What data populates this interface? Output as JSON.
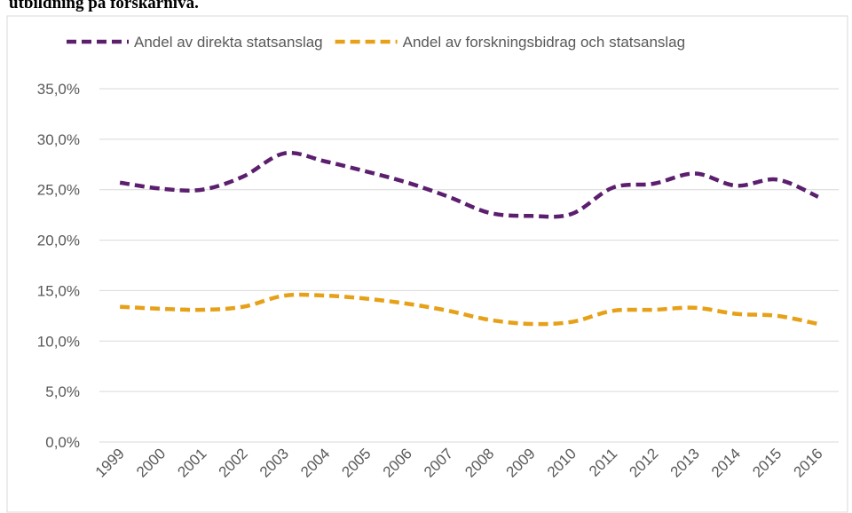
{
  "chart_data": {
    "type": "line",
    "title": "utbildning på forskarnivå.",
    "categories": [
      "1999",
      "2000",
      "2001",
      "2002",
      "2003",
      "2004",
      "2005",
      "2006",
      "2007",
      "2008",
      "2009",
      "2010",
      "2011",
      "2012",
      "2013",
      "2014",
      "2015",
      "2016"
    ],
    "series": [
      {
        "name": "Andel av direkta statsanslag",
        "color": "#5b1f6e",
        "values": [
          25.7,
          25.1,
          25.0,
          26.3,
          28.6,
          27.8,
          26.8,
          25.7,
          24.3,
          22.7,
          22.4,
          22.6,
          25.2,
          25.6,
          26.6,
          25.4,
          26.0,
          24.3
        ]
      },
      {
        "name": "Andel av forskningsbidrag och statsanslag",
        "color": "#e6a118",
        "values": [
          13.4,
          13.2,
          13.1,
          13.4,
          14.5,
          14.5,
          14.2,
          13.7,
          13.0,
          12.1,
          11.7,
          11.9,
          13.0,
          13.1,
          13.3,
          12.7,
          12.5,
          11.7
        ]
      }
    ],
    "ylim": [
      0,
      35
    ],
    "yticks": [
      {
        "value": 0,
        "label": "0,0%"
      },
      {
        "value": 5,
        "label": "5,0%"
      },
      {
        "value": 10,
        "label": "10,0%"
      },
      {
        "value": 15,
        "label": "15,0%"
      },
      {
        "value": 20,
        "label": "20,0%"
      },
      {
        "value": 25,
        "label": "25,0%"
      },
      {
        "value": 30,
        "label": "30,0%"
      },
      {
        "value": 35,
        "label": "35,0%"
      }
    ],
    "grid": true,
    "legend": "top"
  }
}
